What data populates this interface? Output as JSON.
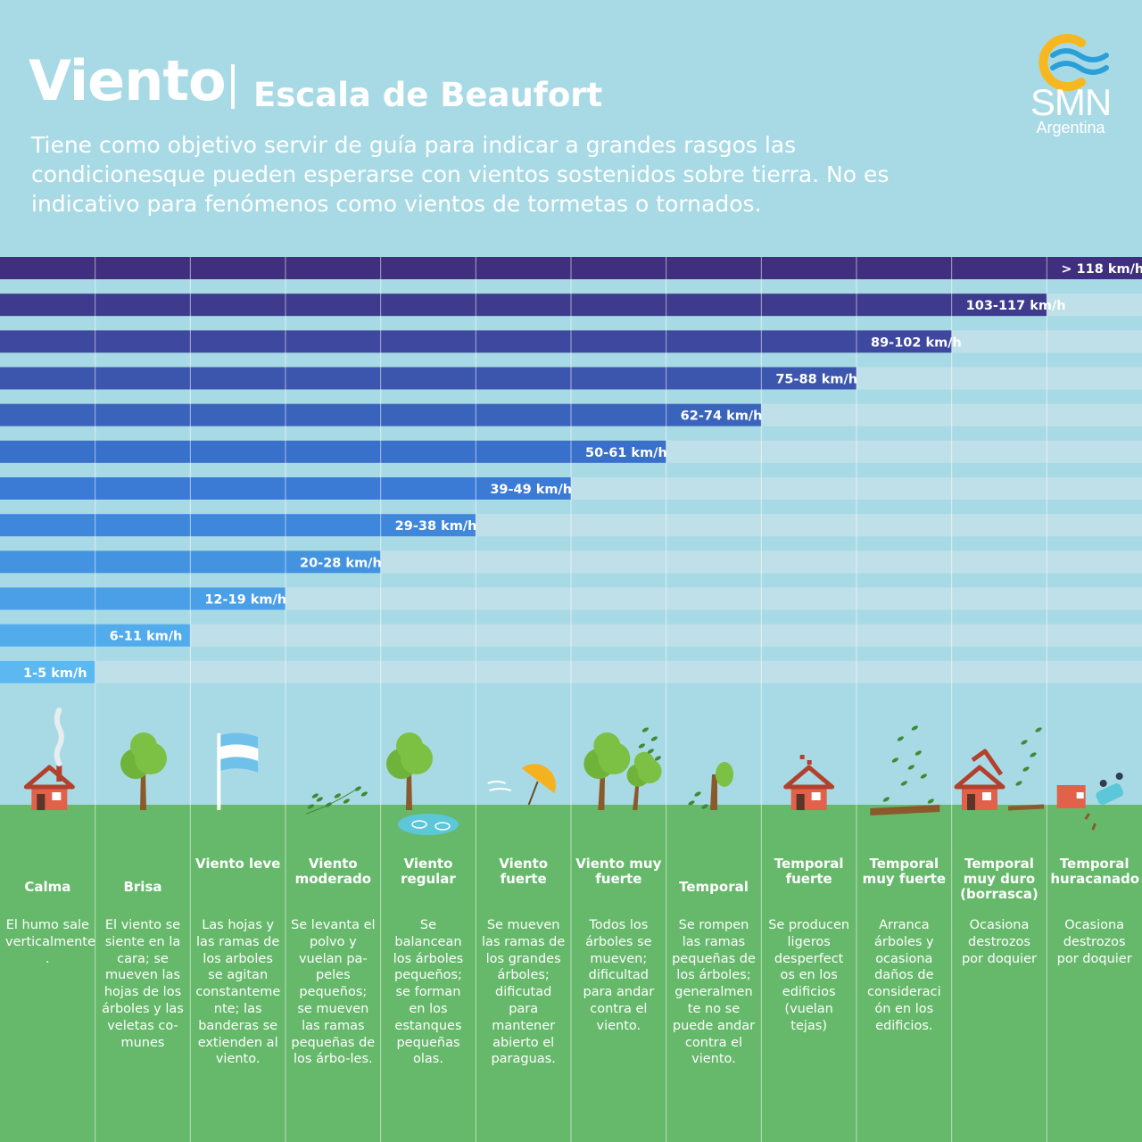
{
  "header": {
    "title": "Viento",
    "subtitle": "Escala de Beaufort",
    "description": "Tiene como objetivo servir de guía para indicar a grandes rasgos las condicionesque pueden esperarse con vientos sostenidos sobre tierra. No es indicativo para fenómenos como vientos de tormetas o tornados."
  },
  "logo": {
    "text": "SMN",
    "subtext": "Argentina",
    "colors": {
      "ring": "#f7b81f",
      "waves": "#2a9fd8"
    }
  },
  "colors": {
    "sky": "#a8dae6",
    "ground": "#66b96b",
    "track": "#bfe0e8",
    "bars": [
      "#5bb8f0",
      "#52abeb",
      "#4a9fe6",
      "#4493e1",
      "#3f87dc",
      "#3b7bd6",
      "#3970c9",
      "#3a64bc",
      "#3c56ad",
      "#3e489e",
      "#3e3a8e",
      "#3f2f7e"
    ]
  },
  "chart_data": {
    "type": "bar",
    "orientation": "horizontal",
    "categories": [
      "Calma",
      "Brisa",
      "Viento leve",
      "Viento moderado",
      "Viento regular",
      "Viento fuerte",
      "Viento muy fuerte",
      "Temporal",
      "Temporal fuerte",
      "Temporal muy fuerte",
      "Temporal muy duro (borrasca)",
      "Temporal huracanado"
    ],
    "labels": [
      "1-5 km/h",
      "6-11 km/h",
      "12-19 km/h",
      "20-28 km/h",
      "29-38 km/h",
      "39-49 km/h",
      "50-61 km/h",
      "62-74 km/h",
      "75-88 km/h",
      "89-102 km/h",
      "103-117 km/h",
      "> 118 km/h"
    ],
    "ranges": [
      [
        1,
        5
      ],
      [
        6,
        11
      ],
      [
        12,
        19
      ],
      [
        20,
        28
      ],
      [
        29,
        38
      ],
      [
        39,
        49
      ],
      [
        50,
        61
      ],
      [
        62,
        74
      ],
      [
        75,
        88
      ],
      [
        89,
        102
      ],
      [
        103,
        117
      ],
      [
        118,
        null
      ]
    ],
    "level_count": 12
  },
  "categories": [
    {
      "name": "Calma",
      "description": "El humo sale verticalmente\n.",
      "icon": "smoking-house-icon"
    },
    {
      "name": "Brisa",
      "description": "El viento se siente en la cara; se mueven las hojas de los árboles y las veletas co-munes",
      "icon": "tree-icon"
    },
    {
      "name": "Viento leve",
      "description": "Las hojas y las ramas de los arboles se agitan constanteme nte; las banderas se extienden al viento.",
      "icon": "argentina-flag-icon"
    },
    {
      "name": "Viento moderado",
      "description": "Se levanta el polvo y vuelan pa-peles pequeños; se mueven las ramas pequeñas de los árbo-les.",
      "icon": "blowing-leaves-icon"
    },
    {
      "name": "Viento regular",
      "description": "Se balancean los árboles pequeños; se forman en los estanques pequeñas olas.",
      "icon": "tree-pond-icon"
    },
    {
      "name": "Viento fuerte",
      "description": "Se mueven las ramas de los grandes árboles; dificutad para mantener abierto el paraguas.",
      "icon": "umbrella-icon"
    },
    {
      "name": "Viento muy fuerte",
      "description": "Todos los árboles se mueven; dificultad para andar contra el viento.",
      "icon": "bending-trees-icon"
    },
    {
      "name": "Temporal",
      "description": "Se rompen las ramas pequeñas de los árboles; generalmen te no se puede andar contra el viento.",
      "icon": "breaking-tree-icon"
    },
    {
      "name": "Temporal fuerte",
      "description": "Se producen ligeros desperfect os en los edificios (vuelan tejas)",
      "icon": "damaged-roof-house-icon"
    },
    {
      "name": "Temporal muy fuerte",
      "description": "Arranca árboles y ocasiona daños de consideraci ón en los edificios.",
      "icon": "uprooted-tree-icon"
    },
    {
      "name": "Temporal muy duro (borrasca)",
      "description": "Ocasiona destrozos por doquier",
      "icon": "roof-torn-house-icon"
    },
    {
      "name": "Temporal huracanado",
      "description": "Ocasiona destrozos por doquier",
      "icon": "overturned-car-icon"
    }
  ]
}
